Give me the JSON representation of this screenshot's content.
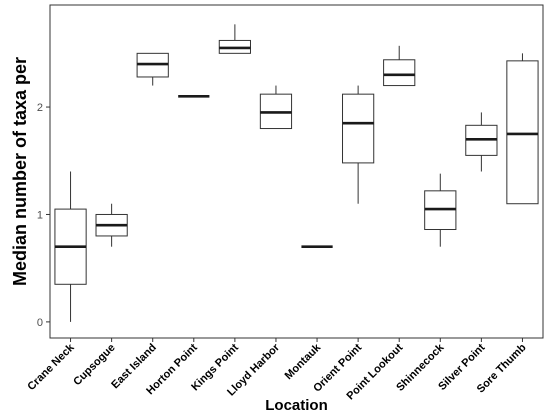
{
  "chart_data": {
    "type": "boxplot",
    "title": "",
    "xlabel": "Location",
    "ylabel": "Median number of taxa per",
    "ylim": [
      -0.15,
      2.95
    ],
    "yticks": [
      0,
      1,
      2
    ],
    "ytick_labels": [
      "0",
      "1",
      "2"
    ],
    "grid": false,
    "legend": "none",
    "categories": [
      "Crane Neck",
      "Cupsogue",
      "East Island",
      "Horton Point",
      "Kings Point",
      "Lloyd Harbor",
      "Montauk",
      "Orient Point",
      "Point Lookout",
      "Shinnecock",
      "Silver Point",
      "Sore Thumb"
    ],
    "boxes": [
      {
        "min": 0.0,
        "q1": 0.35,
        "median": 0.7,
        "q3": 1.05,
        "max": 1.4
      },
      {
        "min": 0.7,
        "q1": 0.8,
        "median": 0.9,
        "q3": 1.0,
        "max": 1.1
      },
      {
        "min": 2.2,
        "q1": 2.28,
        "median": 2.4,
        "q3": 2.5,
        "max": 2.5
      },
      {
        "min": 2.1,
        "q1": 2.1,
        "median": 2.1,
        "q3": 2.1,
        "max": 2.1
      },
      {
        "min": 2.5,
        "q1": 2.5,
        "median": 2.55,
        "q3": 2.62,
        "max": 2.77
      },
      {
        "min": 1.8,
        "q1": 1.8,
        "median": 1.95,
        "q3": 2.12,
        "max": 2.2
      },
      {
        "min": 0.7,
        "q1": 0.7,
        "median": 0.7,
        "q3": 0.7,
        "max": 0.7
      },
      {
        "min": 1.1,
        "q1": 1.48,
        "median": 1.85,
        "q3": 2.12,
        "max": 2.2
      },
      {
        "min": 2.2,
        "q1": 2.2,
        "median": 2.3,
        "q3": 2.44,
        "max": 2.57
      },
      {
        "min": 0.7,
        "q1": 0.86,
        "median": 1.05,
        "q3": 1.22,
        "max": 1.38
      },
      {
        "min": 1.4,
        "q1": 1.55,
        "median": 1.7,
        "q3": 1.83,
        "max": 1.95
      },
      {
        "min": 1.1,
        "q1": 1.1,
        "median": 1.75,
        "q3": 2.43,
        "max": 2.5
      }
    ]
  },
  "colors": {
    "box_fill": "#ffffff",
    "box_stroke": "#333333",
    "median": "#1a1a1a",
    "panel_border": "#333333"
  }
}
